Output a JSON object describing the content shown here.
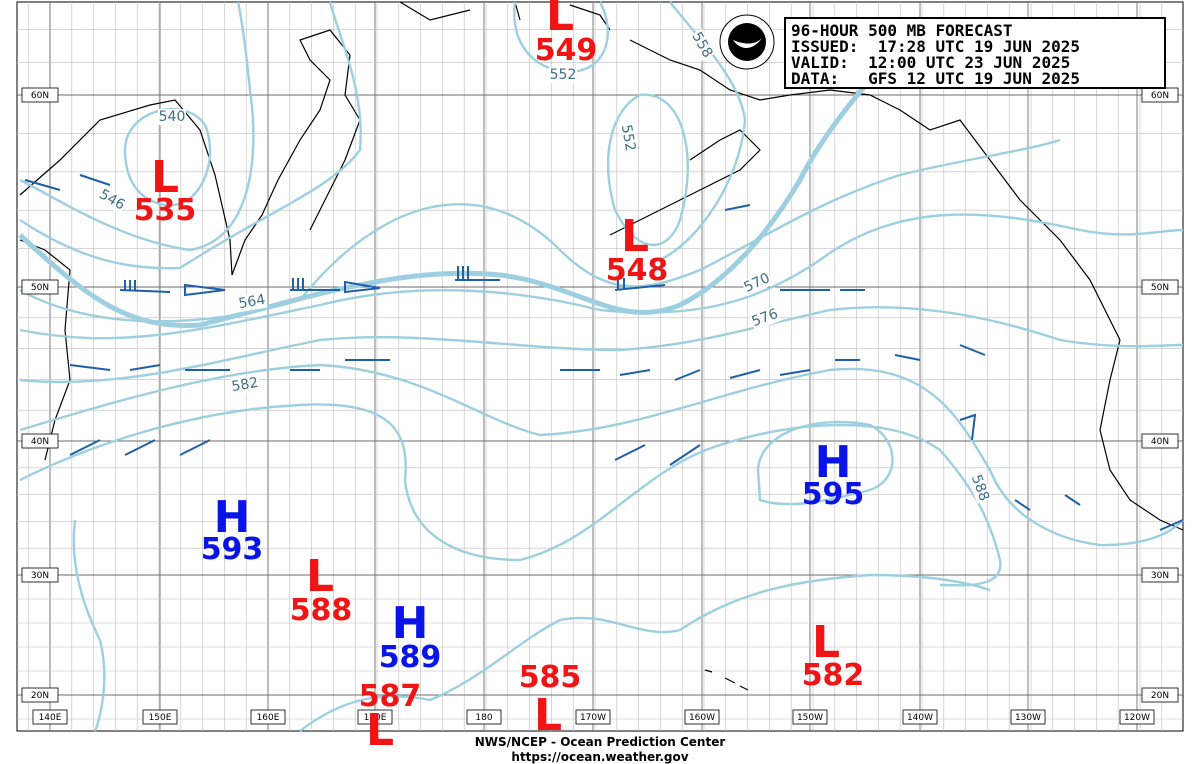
{
  "header": [
    "96-HOUR 500 MB FORECAST",
    "ISSUED:  17:28 UTC 19 JUN 2025",
    "VALID:  12:00 UTC 23 JUN 2025",
    "DATA:   GFS 12 UTC 19 JUN 2025"
  ],
  "lat_labels": [
    "60N",
    "50N",
    "40N",
    "30N",
    "20N"
  ],
  "lon_labels": [
    "140E",
    "150E",
    "160E",
    "170E",
    "180",
    "170W",
    "160W",
    "150W",
    "140W",
    "130W",
    "120W"
  ],
  "centers": [
    {
      "type": "L",
      "value": 549
    },
    {
      "type": "L",
      "value": 535
    },
    {
      "type": "L",
      "value": 548
    },
    {
      "type": "H",
      "value": 595
    },
    {
      "type": "H",
      "value": 593
    },
    {
      "type": "L",
      "value": 588
    },
    {
      "type": "H",
      "value": 589
    },
    {
      "type": "L",
      "value": 582
    },
    {
      "type": "L",
      "value": 585
    },
    {
      "type": "L",
      "value": 587
    }
  ],
  "contour_labels": [
    540,
    546,
    552,
    552,
    558,
    564,
    570,
    576,
    582,
    588
  ],
  "footer": [
    "NWS/NCEP - Ocean Prediction Center",
    "https://ocean.weather.gov"
  ]
}
